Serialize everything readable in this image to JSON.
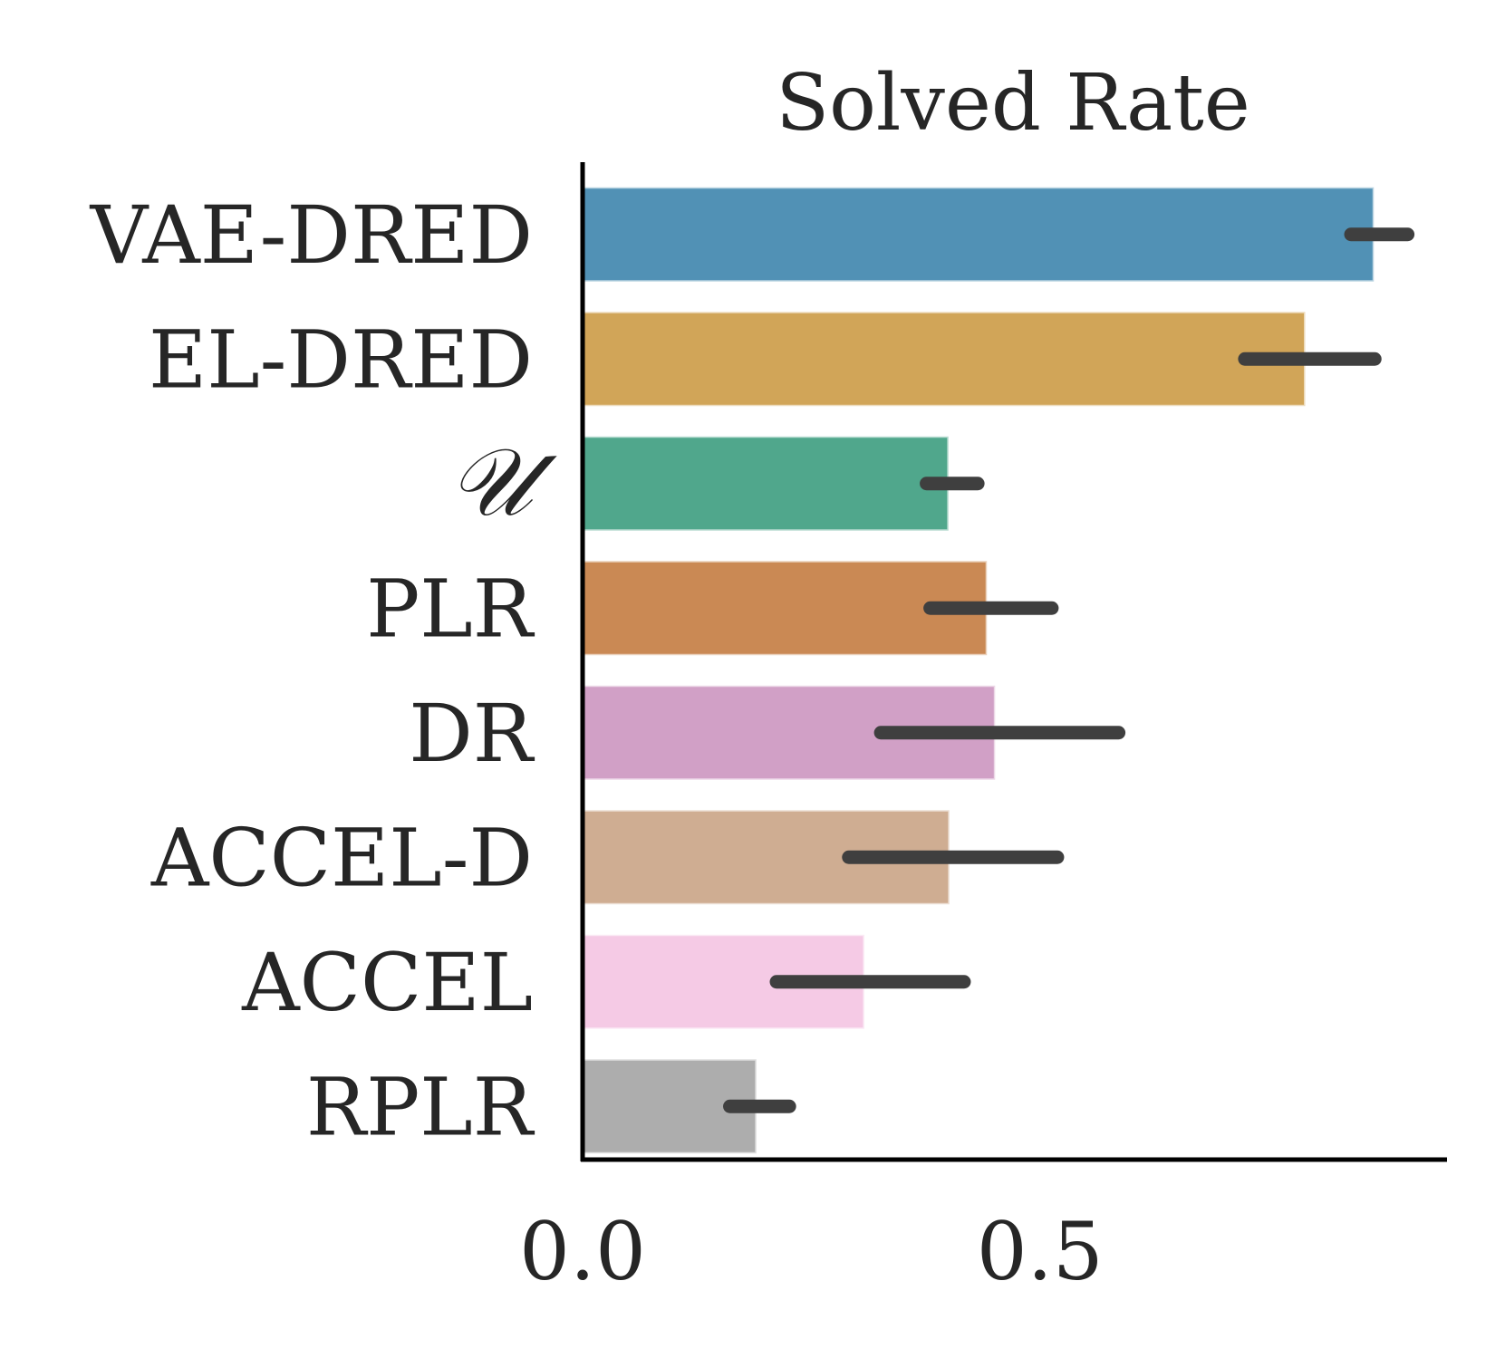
{
  "chart_data": {
    "type": "bar",
    "orientation": "horizontal",
    "title": "Solved Rate",
    "xlabel": "",
    "ylabel": "",
    "xlim": [
      0,
      0.945
    ],
    "xticks": [
      {
        "value": 0.0,
        "label": "0.0"
      },
      {
        "value": 0.5,
        "label": "0.5"
      }
    ],
    "grid": false,
    "error_bar_color": "#3f3f3f",
    "categories": [
      {
        "label": "VAE-DRED",
        "math": false,
        "value": 0.865,
        "err_low": 0.84,
        "err_high": 0.902,
        "color": "#5191b5"
      },
      {
        "label": "EL-DRED",
        "math": false,
        "value": 0.79,
        "err_low": 0.724,
        "err_high": 0.866,
        "color": "#d1a558"
      },
      {
        "label": "𝒰",
        "math": true,
        "value": 0.4,
        "err_low": 0.376,
        "err_high": 0.432,
        "color": "#50a78c"
      },
      {
        "label": "PLR",
        "math": false,
        "value": 0.442,
        "err_low": 0.38,
        "err_high": 0.513,
        "color": "#ca8954"
      },
      {
        "label": "DR",
        "math": false,
        "value": 0.451,
        "err_low": 0.326,
        "err_high": 0.586,
        "color": "#d1a0c6"
      },
      {
        "label": "ACCEL-D",
        "math": false,
        "value": 0.401,
        "err_low": 0.291,
        "err_high": 0.519,
        "color": "#cfad92"
      },
      {
        "label": "ACCEL",
        "math": false,
        "value": 0.308,
        "err_low": 0.212,
        "err_high": 0.417,
        "color": "#f5cae5"
      },
      {
        "label": "RPLR",
        "math": false,
        "value": 0.19,
        "err_low": 0.161,
        "err_high": 0.226,
        "color": "#adadad"
      }
    ]
  }
}
